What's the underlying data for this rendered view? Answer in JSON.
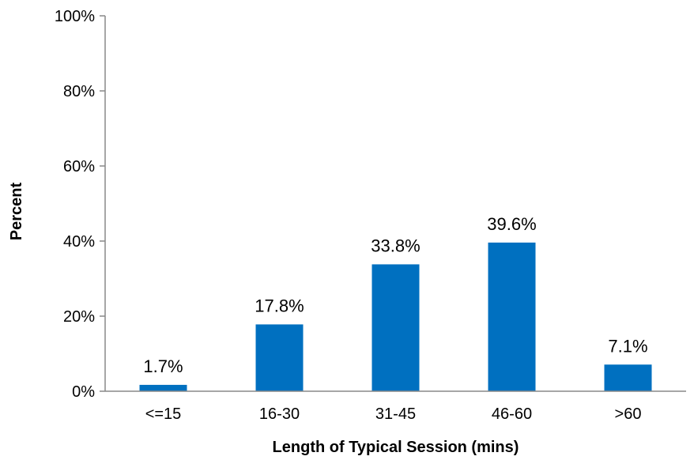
{
  "chart_data": {
    "type": "bar",
    "categories": [
      "<=15",
      "16-30",
      "31-45",
      "46-60",
      ">60"
    ],
    "values": [
      1.7,
      17.8,
      33.8,
      39.6,
      7.1
    ],
    "data_labels": [
      "1.7%",
      "17.8%",
      "33.8%",
      "39.6%",
      "7.1%"
    ],
    "title": "",
    "xlabel": "Length of Typical Session (mins)",
    "ylabel": "Percent",
    "ylim": [
      0,
      100
    ],
    "yticks": [
      0,
      20,
      40,
      60,
      80,
      100
    ],
    "ytick_labels": [
      "0%",
      "20%",
      "40%",
      "60%",
      "80%",
      "100%"
    ],
    "bar_color": "#0070C0",
    "grid": false,
    "legend": "none"
  }
}
